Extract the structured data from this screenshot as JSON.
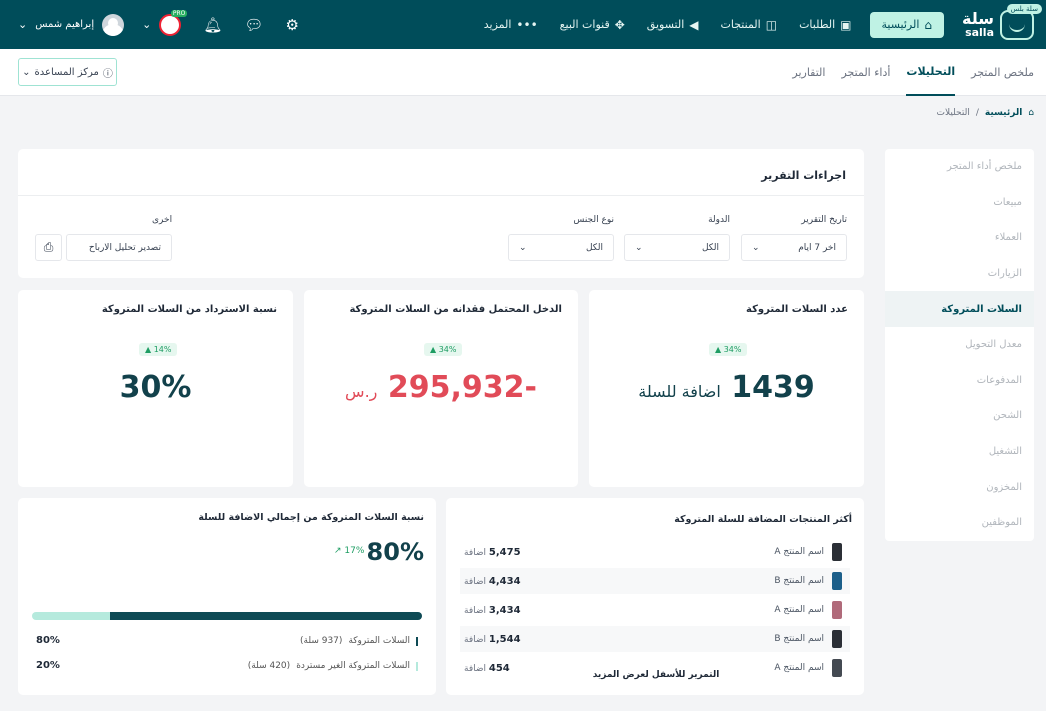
{
  "topbar": {
    "logo_ar": "سلة",
    "logo_en": "salla",
    "logo_badge": "سلة بلس",
    "nav": [
      {
        "label": "الرئيسية",
        "icon": "⌂"
      },
      {
        "label": "الطلبات",
        "icon": "▣"
      },
      {
        "label": "المنتجات",
        "icon": "◫"
      },
      {
        "label": "التسويق",
        "icon": "◀"
      },
      {
        "label": "قنوات البيع",
        "icon": "✥"
      },
      {
        "label": "المزيد",
        "icon": "•••"
      }
    ],
    "user_name": "إبراهيم شمس",
    "store_tag": "PRO"
  },
  "subnav": {
    "tabs": [
      "ملخص المتجر",
      "التحليلات",
      "أداء المتجر",
      "التقارير"
    ],
    "help_label": "مركز المساعدة"
  },
  "breadcrumb": {
    "home": "الرئيسية",
    "sep": "/",
    "current": "التحليلات"
  },
  "sidemenu": [
    "ملخص أداء المتجر",
    "مبيعات",
    "العملاء",
    "الزيارات",
    "السلات المتروكة",
    "معدل التحويل",
    "المدفوعات",
    "الشحن",
    "التشغيل",
    "المخزون",
    "الموظفين"
  ],
  "filters": {
    "title": "اجراءات التقرير",
    "date_label": "تاريخ التقرير",
    "date_value": "اخر 7 ايام",
    "country_label": "الدولة",
    "country_value": "الكل",
    "gender_label": "نوع الجنس",
    "gender_value": "الكل",
    "other_label": "اخرى",
    "export_value": "تصدير تحليل الارباح"
  },
  "kpis": {
    "carts": {
      "title": "عدد السلات المتروكة",
      "badge": "▲ 34%",
      "value": "1439",
      "suffix": "اضافة للسلة"
    },
    "income": {
      "title": "الدخل المحتمل فقدانه من السلات المتروكة",
      "badge": "▲ 34%",
      "value": "-295,932",
      "suffix": "ر.س"
    },
    "recovery": {
      "title": "نسبة الاسترداد من السلات المتروكة",
      "badge": "▲ 14%",
      "value": "30%"
    }
  },
  "ratio": {
    "title": "نسبة السلات المتروكة من إجمالي الاضافة للسلة",
    "big": "80%",
    "trend": "↗ 17%",
    "abandoned_pct": 80,
    "legend": [
      {
        "label": "السلات المتروكة",
        "detail": "(937 سلة)",
        "pct": "80%",
        "color": "#0e4a55"
      },
      {
        "label": "السلات المتروكة الغير مستردة",
        "detail": "(420 سلة)",
        "pct": "20%",
        "color": "#b5eadd"
      }
    ]
  },
  "top_products": {
    "title": "أكثر المنتجات المضافة للسلة المتروكة",
    "unit": "اضافة",
    "rows": [
      {
        "name": "اسم المنتج A",
        "count": "5,475",
        "color": "#2b2f36"
      },
      {
        "name": "اسم المنتج B",
        "count": "4,434",
        "color": "#1c5f8a"
      },
      {
        "name": "اسم المنتج A",
        "count": "3,434",
        "color": "#b06a7a"
      },
      {
        "name": "اسم المنتج B",
        "count": "1,544",
        "color": "#2b2f36"
      },
      {
        "name": "اسم المنتج A",
        "count": "454",
        "color": "#444a52"
      }
    ],
    "scroll_hint": "التمرير للأسفل لعرض المزيد"
  }
}
